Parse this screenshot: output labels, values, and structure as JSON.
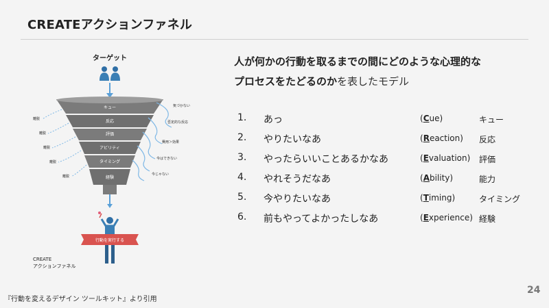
{
  "slide": {
    "title": "CREATEアクションファネル",
    "page_number": "24",
    "citation": "『行動を変えるデザイン ツールキット』より引用"
  },
  "lead": {
    "line1": "人が何かの行動を取るまでの間にどのような心理的な",
    "line2_bold": "プロセスをたどるのか",
    "line2_rest": "を表したモデル"
  },
  "steps": [
    {
      "num": "1.",
      "text": "あっ",
      "paren_open": "(",
      "cap": "C",
      "rest": "ue)",
      "term": "キュー"
    },
    {
      "num": "2.",
      "text": "やりたいなあ",
      "paren_open": "(",
      "cap": "R",
      "rest": "eaction)",
      "term": "反応"
    },
    {
      "num": "3.",
      "text": "やったらいいことあるかなあ",
      "paren_open": "(",
      "cap": "E",
      "rest": "valuation)",
      "term": "評価"
    },
    {
      "num": "4.",
      "text": "やれそうだなあ",
      "paren_open": "(",
      "cap": "A",
      "rest": "bility)",
      "term": "能力"
    },
    {
      "num": "5.",
      "text": "今やりたいなあ",
      "paren_open": "(",
      "cap": "T",
      "rest": "iming)",
      "term": "タイミング"
    },
    {
      "num": "6.",
      "text": "前もやってよかったしなあ",
      "paren_open": "(",
      "cap": "E",
      "rest": "xperience)",
      "term": "経験"
    }
  ],
  "funnel": {
    "target_label": "ターゲット",
    "layers": [
      "キュー",
      "反応",
      "評価",
      "アビリティ",
      "タイミング",
      "経験"
    ],
    "left_drops": [
      "離脱",
      "離脱",
      "離脱",
      "離脱",
      "離脱"
    ],
    "right_drops": [
      "気づかない",
      "否定的な反応",
      "費用＞効果",
      "今はできない",
      "今じゃない"
    ],
    "action_banner": "行動を実行する",
    "caption_line1": "CREATE",
    "caption_line2": "アクションファネル",
    "colors": {
      "funnel_dark": "#6e6e6e",
      "funnel_light": "#9a9a9a",
      "figure_blue": "#3a7fb5",
      "banner_red": "#d9534f",
      "drop_blue": "#6aaee0"
    }
  }
}
